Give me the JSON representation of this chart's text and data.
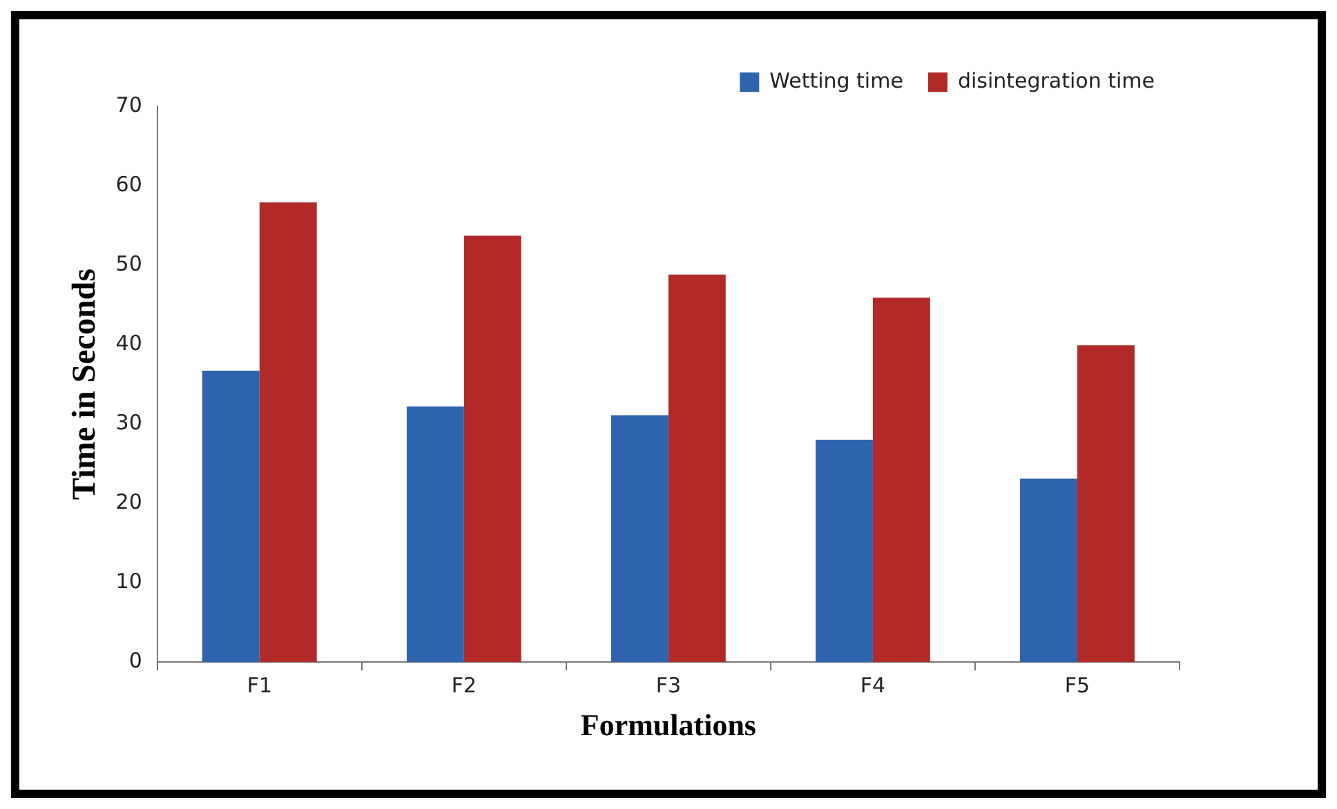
{
  "chart_data": {
    "type": "bar",
    "xlabel": "Formulations",
    "ylabel": "Time in Seconds",
    "categories": [
      "F1",
      "F2",
      "F3",
      "F4",
      "F5"
    ],
    "series": [
      {
        "name": "Wetting time",
        "color": "#2e64ae",
        "values": [
          36.7,
          32.2,
          31.1,
          28.0,
          23.1
        ]
      },
      {
        "name": "disintegration time",
        "color": "#b22a28",
        "values": [
          57.9,
          53.7,
          48.8,
          45.9,
          39.9
        ]
      }
    ],
    "ylim": [
      0,
      70
    ],
    "yticks": [
      0,
      10,
      20,
      30,
      40,
      50,
      60,
      70
    ],
    "legend": "top right"
  }
}
